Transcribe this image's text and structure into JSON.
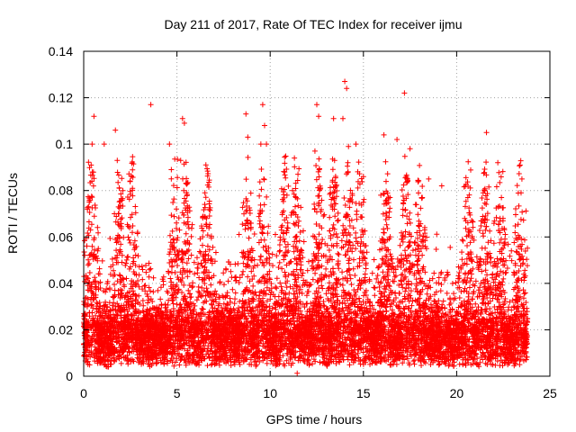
{
  "chart_data": {
    "type": "scatter",
    "title": "Day 211 of 2017, Rate Of TEC Index for receiver ijmu",
    "xlabel": "GPS time / hours",
    "ylabel": "ROTI / TECUs",
    "xlim": [
      0,
      25
    ],
    "ylim": [
      0,
      0.14
    ],
    "x_ticks": [
      "0",
      "5",
      "10",
      "15",
      "20",
      "25"
    ],
    "y_ticks": [
      "0",
      "0.02",
      "0.04",
      "0.06",
      "0.08",
      "0.1",
      "0.12",
      "0.14"
    ],
    "grid": true,
    "legend": "none",
    "marker": "+",
    "color": "#ff0000",
    "x_data_range": [
      0,
      23.8
    ],
    "series": [
      {
        "points": [
          [
            0.45,
            0.1
          ],
          [
            0.55,
            0.112
          ],
          [
            0.4,
            0.091
          ],
          [
            0.3,
            0.075
          ],
          [
            0.2,
            0.072
          ],
          [
            1.1,
            0.1
          ],
          [
            1.7,
            0.106
          ],
          [
            1.8,
            0.093
          ],
          [
            3.6,
            0.117
          ],
          [
            4.6,
            0.1
          ],
          [
            5.3,
            0.111
          ],
          [
            5.4,
            0.109
          ],
          [
            5.2,
            0.093
          ],
          [
            8.7,
            0.113
          ],
          [
            8.8,
            0.103
          ],
          [
            9.6,
            0.117
          ],
          [
            9.7,
            0.108
          ],
          [
            9.5,
            0.1
          ],
          [
            9.8,
            0.1
          ],
          [
            11.3,
            0.094
          ],
          [
            11.2,
            0.08
          ],
          [
            12.5,
            0.117
          ],
          [
            12.6,
            0.112
          ],
          [
            12.4,
            0.097
          ],
          [
            13.4,
            0.111
          ],
          [
            14.0,
            0.127
          ],
          [
            14.1,
            0.124
          ],
          [
            13.9,
            0.111
          ],
          [
            14.2,
            0.099
          ],
          [
            14.6,
            0.1
          ],
          [
            16.1,
            0.104
          ],
          [
            16.8,
            0.102
          ],
          [
            17.2,
            0.122
          ],
          [
            17.5,
            0.098
          ],
          [
            18.5,
            0.085
          ],
          [
            21.6,
            0.105
          ],
          [
            23.4,
            0.091
          ],
          [
            23.5,
            0.085
          ],
          [
            4.7,
            0.089
          ],
          [
            6.5,
            0.079
          ],
          [
            2.1,
            0.08
          ],
          [
            19.2,
            0.082
          ],
          [
            22.4,
            0.077
          ],
          [
            20.6,
            0.077
          ],
          [
            15.0,
            0.086
          ]
        ]
      }
    ]
  }
}
